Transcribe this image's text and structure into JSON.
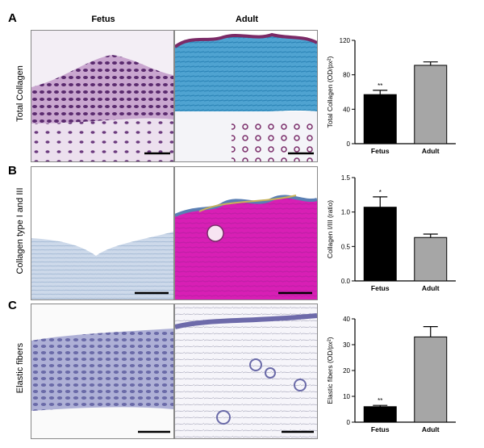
{
  "column_headers": {
    "fetus": "Fetus",
    "adult": "Adult"
  },
  "panels": [
    {
      "letter": "A",
      "row_label": "Total Collagen"
    },
    {
      "letter": "B",
      "row_label": "Collagen type I and III"
    },
    {
      "letter": "C",
      "row_label": "Elastic fibers"
    }
  ],
  "chart_data": [
    {
      "type": "bar",
      "categories": [
        "Fetus",
        "Adult"
      ],
      "values": [
        57,
        91
      ],
      "errors": [
        5,
        4
      ],
      "significance": [
        "**",
        ""
      ],
      "ylabel": "Total Collagen (OD/px²)",
      "ylim": [
        0,
        120
      ],
      "yticks": [
        0,
        40,
        80,
        120
      ],
      "ytick_labels": [
        "0",
        "40",
        "80",
        "120"
      ],
      "colors": [
        "#000000",
        "#a6a6a6"
      ]
    },
    {
      "type": "bar",
      "categories": [
        "Fetus",
        "Adult"
      ],
      "values": [
        1.07,
        0.63
      ],
      "errors": [
        0.15,
        0.05
      ],
      "significance": [
        "*",
        ""
      ],
      "ylabel": "Collagen I/III (ratio)",
      "ylim": [
        0,
        1.5
      ],
      "yticks": [
        0,
        0.5,
        1.0,
        1.5
      ],
      "ytick_labels": [
        "0.0",
        "0.5",
        "1.0",
        "1.5"
      ],
      "colors": [
        "#000000",
        "#a6a6a6"
      ]
    },
    {
      "type": "bar",
      "categories": [
        "Fetus",
        "Adult"
      ],
      "values": [
        6,
        33
      ],
      "errors": [
        0.5,
        4
      ],
      "significance": [
        "**",
        ""
      ],
      "ylabel": "Elastic fibers (OD/px²)",
      "ylim": [
        0,
        40
      ],
      "yticks": [
        0,
        10,
        20,
        30,
        40
      ],
      "ytick_labels": [
        "0",
        "10",
        "20",
        "30",
        "40"
      ],
      "colors": [
        "#000000",
        "#a6a6a6"
      ]
    }
  ]
}
